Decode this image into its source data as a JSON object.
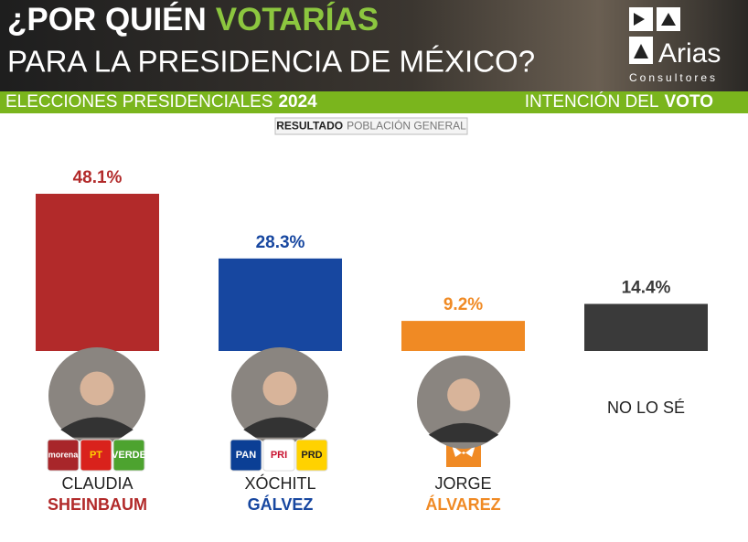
{
  "header": {
    "title_line1": [
      "¿POR QUIÉN",
      "VOTARÍAS"
    ],
    "title_line2": "PARA LA PRESIDENCIA DE MÉXICO?",
    "brand": "Arias",
    "brand_sub": "Consultores",
    "left_band": [
      "ELECCIONES PRESIDENCIALES",
      "2024"
    ],
    "right_band": [
      "INTENCIÓN DEL",
      "VOTO"
    ],
    "badge": [
      "RESULTADO",
      "POBLACIÓN GENERAL"
    ]
  },
  "chart_data": {
    "type": "bar",
    "categories": [
      [
        "CLAUDIA",
        "SHEINBAUM"
      ],
      [
        "XÓCHITL",
        "GÁLVEZ"
      ],
      [
        "JORGE",
        "ÁLVAREZ"
      ],
      [
        "NO LO SÉ"
      ]
    ],
    "values": [
      48.1,
      28.3,
      9.2,
      14.4
    ],
    "value_labels": [
      "48.1%",
      "28.3%",
      "9.2%",
      "14.4%"
    ],
    "colors": [
      "#b22a2a",
      "#1747a0",
      "#f08a24",
      "#3a3a3a"
    ]
  },
  "party_logos": [
    [
      "morena",
      "PT",
      "VERDE"
    ],
    [
      "PAN",
      "PRI",
      "PRD"
    ]
  ]
}
